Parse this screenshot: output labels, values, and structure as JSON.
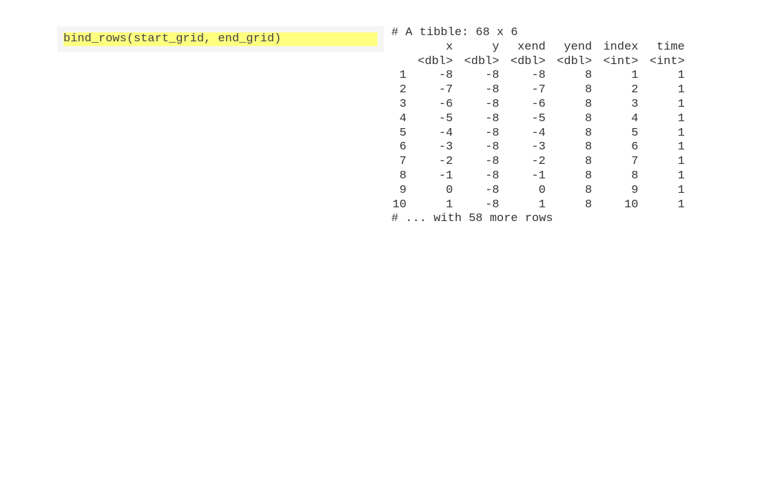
{
  "code": {
    "expression": "bind_rows(start_grid, end_grid)"
  },
  "output": {
    "header": "# A tibble: 68 x 6",
    "columns": [
      "x",
      "y",
      "xend",
      "yend",
      "index",
      "time"
    ],
    "types": [
      "<dbl>",
      "<dbl>",
      "<dbl>",
      "<dbl>",
      "<int>",
      "<int>"
    ],
    "rows": [
      {
        "n": "1",
        "cells": [
          "-8",
          "-8",
          "-8",
          "8",
          "1",
          "1"
        ]
      },
      {
        "n": "2",
        "cells": [
          "-7",
          "-8",
          "-7",
          "8",
          "2",
          "1"
        ]
      },
      {
        "n": "3",
        "cells": [
          "-6",
          "-8",
          "-6",
          "8",
          "3",
          "1"
        ]
      },
      {
        "n": "4",
        "cells": [
          "-5",
          "-8",
          "-5",
          "8",
          "4",
          "1"
        ]
      },
      {
        "n": "5",
        "cells": [
          "-4",
          "-8",
          "-4",
          "8",
          "5",
          "1"
        ]
      },
      {
        "n": "6",
        "cells": [
          "-3",
          "-8",
          "-3",
          "8",
          "6",
          "1"
        ]
      },
      {
        "n": "7",
        "cells": [
          "-2",
          "-8",
          "-2",
          "8",
          "7",
          "1"
        ]
      },
      {
        "n": "8",
        "cells": [
          "-1",
          "-8",
          "-1",
          "8",
          "8",
          "1"
        ]
      },
      {
        "n": "9",
        "cells": [
          "0",
          "-8",
          "0",
          "8",
          "9",
          "1"
        ]
      },
      {
        "n": "10",
        "cells": [
          "1",
          "-8",
          "1",
          "8",
          "10",
          "1"
        ]
      }
    ],
    "footer": "# ... with 58 more rows"
  }
}
